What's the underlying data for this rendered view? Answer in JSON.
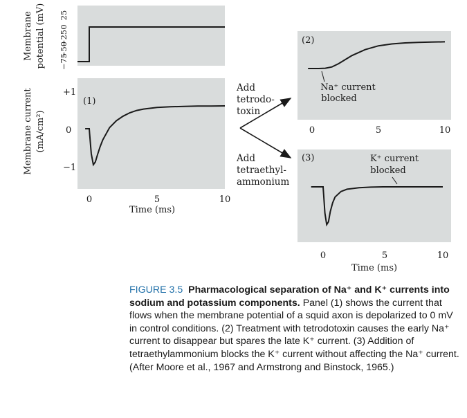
{
  "colors": {
    "panel_bg": "#d9dcdc",
    "ink": "#1a1a1a",
    "caption_label": "#1f6fa8"
  },
  "labels": {
    "membrane_potential_axis": "Membrane potential (mV)",
    "membrane_potential_line1": "Membrane",
    "membrane_potential_line2": "potential (mV)",
    "membrane_current_line1": "Membrane current",
    "membrane_current_line2": "(mA/cm²)",
    "time_left": "Time (ms)",
    "time_right": "Time (ms)",
    "panel1": "(1)",
    "panel2": "(2)",
    "panel3": "(3)",
    "add_ttx_1": "Add",
    "add_ttx_2": "tetrodo-",
    "add_ttx_3": "toxin",
    "add_tea_1": "Add",
    "add_tea_2": "tetraethyl-",
    "add_tea_3": "ammonium",
    "na_block_1": "Na⁺ current",
    "na_block_2": "blocked",
    "k_block_1": "K⁺ current",
    "k_block_2": "blocked"
  },
  "ticks": {
    "voltage": [
      "25",
      "0",
      "−25",
      "−50",
      "−75"
    ],
    "current": [
      "+1",
      "0",
      "−1"
    ],
    "time": [
      "0",
      "5",
      "10"
    ]
  },
  "chart_data": [
    {
      "type": "line",
      "name": "voltage-step",
      "ylabel": "Membrane potential (mV)",
      "ylim": [
        -75,
        25
      ],
      "yticks": [
        25,
        0,
        -25,
        -50,
        -75
      ],
      "series": [
        {
          "x": [
            -1,
            0,
            0,
            10
          ],
          "y": [
            -65,
            -65,
            0,
            0
          ]
        }
      ]
    },
    {
      "type": "line",
      "name": "panel-1-control",
      "panel_label": "(1)",
      "xlabel": "Time (ms)",
      "ylabel": "Membrane current (mA/cm²)",
      "xlim": [
        -0.5,
        10
      ],
      "ylim": [
        -1.4,
        1.3
      ],
      "xticks": [
        0,
        5,
        10
      ],
      "yticks": [
        1,
        0,
        -1
      ],
      "series": [
        {
          "x": [
            -0.3,
            0,
            0.03,
            0.15,
            0.3,
            0.45,
            0.6,
            0.8,
            1.0,
            1.5,
            2.0,
            2.5,
            3.0,
            3.5,
            4.0,
            5.0,
            6.0,
            7.0,
            8.0,
            9.0,
            10.0
          ],
          "y": [
            0,
            0,
            -0.2,
            -0.9,
            -1.3,
            -1.2,
            -0.95,
            -0.65,
            -0.4,
            0.05,
            0.35,
            0.55,
            0.7,
            0.8,
            0.86,
            0.93,
            0.96,
            0.98,
            0.99,
            0.99,
            1.0
          ]
        }
      ]
    },
    {
      "type": "line",
      "name": "panel-2-tetrodotoxin",
      "panel_label": "(2)",
      "annotation": "Na⁺ current blocked",
      "xlim": [
        -0.3,
        10
      ],
      "ylim": [
        -0.6,
        1.3
      ],
      "xticks": [
        0,
        5,
        10
      ],
      "series": [
        {
          "x": [
            -0.3,
            0,
            0.5,
            1.0,
            1.5,
            2.0,
            2.5,
            3.0,
            4.0,
            5.0,
            6.0,
            7.0,
            8.0,
            9.0,
            10.0
          ],
          "y": [
            0,
            0,
            0,
            0.01,
            0.06,
            0.18,
            0.33,
            0.48,
            0.7,
            0.84,
            0.91,
            0.95,
            0.97,
            0.98,
            0.99
          ]
        }
      ]
    },
    {
      "type": "line",
      "name": "panel-3-tetraethylammonium",
      "panel_label": "(3)",
      "annotation": "K⁺ current blocked",
      "xlabel": "Time (ms)",
      "xlim": [
        -1,
        10
      ],
      "ylim": [
        -1.4,
        1.3
      ],
      "xticks": [
        0,
        5,
        10
      ],
      "series": [
        {
          "x": [
            -1,
            0,
            0.05,
            0.15,
            0.3,
            0.45,
            0.6,
            0.8,
            1.0,
            1.5,
            2.0,
            3.0,
            4.0,
            5.0,
            6.0,
            8.0,
            10.0
          ],
          "y": [
            0,
            0,
            -0.3,
            -0.9,
            -1.3,
            -1.2,
            -0.85,
            -0.55,
            -0.35,
            -0.16,
            -0.08,
            -0.03,
            -0.01,
            0,
            0,
            0,
            0
          ]
        }
      ]
    }
  ],
  "caption": {
    "label": "FIGURE 3.5",
    "title": "Pharmacological separation of Na⁺ and K⁺ currents into sodium and potassium components.",
    "body": "Panel (1) shows the current that flows when the membrane potential of a squid axon is depolarized to 0 mV in control conditions. (2) Treatment with tetrodotoxin causes the early Na⁺ current to disappear but spares the late K⁺ current. (3) Addition of tetraethylammonium blocks the K⁺ current without affecting the Na⁺ current. (After Moore et al., 1967 and Armstrong and Binstock, 1965.)"
  }
}
